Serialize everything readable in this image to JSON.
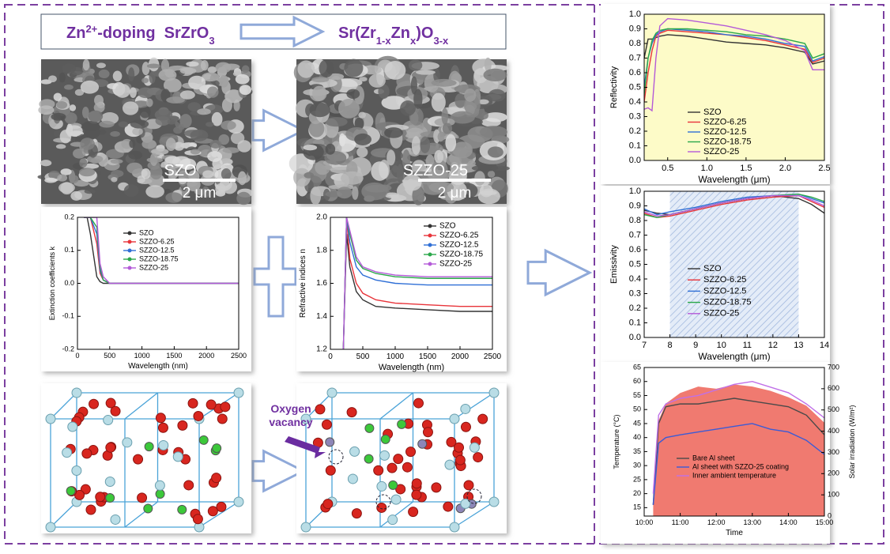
{
  "header": {
    "left": [
      "Zn",
      "2+",
      "-doping  SrZrO",
      "3"
    ],
    "right": [
      "Sr(Zr",
      "1-x",
      "Zn",
      "x",
      ")O",
      "3-x"
    ]
  },
  "sem": {
    "left_label": "SZO",
    "left_scale": "2 μm",
    "right_label": "SZZO-25",
    "right_scale": "2 μm"
  },
  "structure": {
    "annotation": "Oxygen vacancy"
  },
  "chart_data": [
    {
      "type": "line",
      "xlabel": "Wavelength (nm)",
      "ylabel": "Extinction coefficients k",
      "xlim": [
        0,
        2500
      ],
      "xticks": [
        0,
        500,
        1000,
        1500,
        2000,
        2500
      ],
      "ylim": [
        -0.2,
        0.2
      ],
      "yticks": [
        -0.2,
        -0.1,
        {
          "value": 0,
          "label": "0.0"
        },
        0.1,
        0.2
      ],
      "x": [
        100,
        150,
        200,
        300,
        350,
        400,
        500,
        1000,
        1500,
        2000,
        2500
      ],
      "series": [
        {
          "name": "SZO",
          "color": "#333333",
          "values": [
            0.2,
            0.2,
            0.15,
            0.02,
            0.005,
            0,
            0,
            0,
            0,
            0,
            0
          ]
        },
        {
          "name": "SZZO-6.25",
          "color": "#e8343a",
          "values": [
            0.2,
            0.2,
            0.2,
            0.12,
            0.03,
            0.01,
            0,
            0,
            0,
            0,
            0
          ]
        },
        {
          "name": "SZZO-12.5",
          "color": "#2f6fd6",
          "values": [
            0.2,
            0.2,
            0.2,
            0.15,
            0.04,
            0.01,
            0,
            0,
            0,
            0,
            0
          ]
        },
        {
          "name": "SZZO-18.75",
          "color": "#2aa84a",
          "values": [
            0.2,
            0.2,
            0.2,
            0.17,
            0.05,
            0.01,
            0,
            0,
            0,
            0,
            0
          ]
        },
        {
          "name": "SZZO-25",
          "color": "#b45ad8",
          "values": [
            0.2,
            0.2,
            0.2,
            0.2,
            0.06,
            0.02,
            0,
            0,
            0,
            0,
            0
          ]
        }
      ]
    },
    {
      "type": "line",
      "xlabel": "Wavelength (nm)",
      "ylabel": "Refractive indices n",
      "xlim": [
        0,
        2500
      ],
      "xticks": [
        0,
        500,
        1000,
        1500,
        2000,
        2500
      ],
      "ylim": [
        1.2,
        2.0
      ],
      "yticks": [
        1.2,
        1.4,
        1.6,
        1.8,
        {
          "value": 2,
          "label": "2.0"
        }
      ],
      "x": [
        200,
        250,
        300,
        400,
        500,
        700,
        1000,
        1500,
        2000,
        2500
      ],
      "series": [
        {
          "name": "SZO",
          "color": "#333333",
          "values": [
            1.2,
            1.9,
            1.7,
            1.55,
            1.5,
            1.46,
            1.45,
            1.44,
            1.43,
            1.43
          ]
        },
        {
          "name": "SZZO-6.25",
          "color": "#e8343a",
          "values": [
            1.2,
            2.0,
            1.75,
            1.6,
            1.54,
            1.5,
            1.48,
            1.47,
            1.46,
            1.46
          ]
        },
        {
          "name": "SZZO-12.5",
          "color": "#2f6fd6",
          "values": [
            1.2,
            2.0,
            1.85,
            1.7,
            1.65,
            1.62,
            1.6,
            1.59,
            1.59,
            1.59
          ]
        },
        {
          "name": "SZZO-18.75",
          "color": "#2aa84a",
          "values": [
            1.2,
            2.0,
            1.9,
            1.74,
            1.69,
            1.66,
            1.64,
            1.63,
            1.63,
            1.63
          ]
        },
        {
          "name": "SZZO-25",
          "color": "#b45ad8",
          "values": [
            1.2,
            2.0,
            1.92,
            1.76,
            1.7,
            1.67,
            1.65,
            1.64,
            1.64,
            1.64
          ]
        }
      ]
    },
    {
      "type": "line",
      "xlabel": "Wavelength (μm)",
      "ylabel": "Reflectivity",
      "background": "#fdfbc8",
      "xlim": [
        0.2,
        2.5
      ],
      "xticks": [
        0.5,
        {
          "value": 1,
          "label": "1.0"
        },
        1.5,
        {
          "value": 2,
          "label": "2.0"
        },
        2.5
      ],
      "ylim": [
        0,
        1
      ],
      "yticks": [
        {
          "value": 0,
          "label": "0.0"
        },
        0.1,
        0.2,
        0.3,
        0.4,
        0.5,
        0.6,
        0.7,
        0.8,
        0.9,
        {
          "value": 1,
          "label": "1.0"
        }
      ],
      "x": [
        0.2,
        0.25,
        0.3,
        0.35,
        0.4,
        0.5,
        0.75,
        1.0,
        1.25,
        1.5,
        1.75,
        2.0,
        2.25,
        2.35,
        2.5
      ],
      "series": [
        {
          "name": "SZO",
          "color": "#333333",
          "values": [
            0.7,
            0.83,
            0.83,
            0.84,
            0.85,
            0.86,
            0.85,
            0.83,
            0.81,
            0.8,
            0.79,
            0.77,
            0.74,
            0.66,
            0.68
          ]
        },
        {
          "name": "SZZO-6.25",
          "color": "#e8343a",
          "values": [
            0.4,
            0.6,
            0.75,
            0.85,
            0.87,
            0.89,
            0.88,
            0.87,
            0.86,
            0.84,
            0.82,
            0.79,
            0.76,
            0.67,
            0.7
          ]
        },
        {
          "name": "SZZO-12.5",
          "color": "#2f6fd6",
          "values": [
            0.5,
            0.7,
            0.8,
            0.86,
            0.88,
            0.9,
            0.89,
            0.88,
            0.86,
            0.85,
            0.83,
            0.8,
            0.78,
            0.68,
            0.71
          ]
        },
        {
          "name": "SZZO-18.75",
          "color": "#2aa84a",
          "values": [
            0.45,
            0.7,
            0.82,
            0.87,
            0.89,
            0.9,
            0.9,
            0.89,
            0.88,
            0.86,
            0.85,
            0.83,
            0.8,
            0.7,
            0.73
          ]
        },
        {
          "name": "SZZO-25",
          "color": "#b45ad8",
          "values": [
            0.35,
            0.36,
            0.34,
            0.7,
            0.92,
            0.97,
            0.96,
            0.94,
            0.92,
            0.89,
            0.86,
            0.82,
            0.75,
            0.62,
            0.62
          ]
        }
      ]
    },
    {
      "type": "line",
      "xlabel": "Wavelength (μm)",
      "ylabel": "Emissivity",
      "shaded_range": [
        8,
        13
      ],
      "xlim": [
        7,
        14
      ],
      "xticks": [
        7,
        8,
        9,
        10,
        11,
        12,
        13,
        14
      ],
      "ylim": [
        0,
        1
      ],
      "yticks": [
        {
          "value": 0,
          "label": "0.0"
        },
        0.1,
        0.2,
        0.3,
        0.4,
        0.5,
        0.6,
        0.7,
        0.8,
        0.9,
        {
          "value": 1,
          "label": "1.0"
        }
      ],
      "x": [
        7,
        7.5,
        8,
        9,
        10,
        11,
        12,
        13,
        13.5,
        14
      ],
      "series": [
        {
          "name": "SZO",
          "color": "#333333",
          "values": [
            0.87,
            0.85,
            0.84,
            0.88,
            0.92,
            0.95,
            0.97,
            0.95,
            0.91,
            0.85
          ]
        },
        {
          "name": "SZZO-6.25",
          "color": "#e8343a",
          "values": [
            0.85,
            0.82,
            0.83,
            0.87,
            0.91,
            0.94,
            0.96,
            0.97,
            0.93,
            0.89
          ]
        },
        {
          "name": "SZZO-12.5",
          "color": "#2f6fd6",
          "values": [
            0.88,
            0.84,
            0.86,
            0.89,
            0.93,
            0.96,
            0.97,
            0.98,
            0.95,
            0.92
          ]
        },
        {
          "name": "SZZO-18.75",
          "color": "#2aa84a",
          "values": [
            0.84,
            0.82,
            0.84,
            0.88,
            0.92,
            0.95,
            0.97,
            0.98,
            0.96,
            0.93
          ]
        },
        {
          "name": "SZZO-25",
          "color": "#b45ad8",
          "values": [
            0.86,
            0.83,
            0.84,
            0.88,
            0.92,
            0.95,
            0.97,
            0.97,
            0.94,
            0.9
          ]
        }
      ]
    },
    {
      "type": "line",
      "xlabel": "Time",
      "ylabel": "Temperature (°C)",
      "y2label": "Solar irradiation (W/m²)",
      "xlim": [
        10,
        15
      ],
      "xticks": [
        {
          "value": 10,
          "label": "10:00"
        },
        {
          "value": 11,
          "label": "11:00"
        },
        {
          "value": 12,
          "label": "12:00"
        },
        {
          "value": 13,
          "label": "13:00"
        },
        {
          "value": 14,
          "label": "14:00"
        },
        {
          "value": 15,
          "label": "15:00"
        }
      ],
      "ylim": [
        12,
        65
      ],
      "yticks": [
        15,
        20,
        25,
        30,
        35,
        40,
        45,
        50,
        55,
        60,
        65
      ],
      "y2lim": [
        0,
        700
      ],
      "y2ticks": [
        0,
        100,
        200,
        300,
        400,
        500,
        600,
        700
      ],
      "x": [
        10.25,
        10.4,
        10.6,
        11,
        11.5,
        12,
        12.5,
        13,
        13.5,
        14,
        14.5,
        15
      ],
      "area": {
        "color": "#f07a70",
        "axis": "y2",
        "values": [
          100,
          450,
          530,
          580,
          610,
          600,
          620,
          610,
          590,
          560,
          520,
          440
        ]
      },
      "series": [
        {
          "name": "Bare Al sheet",
          "color": "#4a4a4a",
          "values": [
            16,
            45,
            51,
            52,
            52,
            53,
            54,
            53,
            52,
            51,
            48,
            41
          ]
        },
        {
          "name": "Al sheet with SZZO-25 coating",
          "color": "#3b5bd6",
          "values": [
            16,
            38,
            40,
            41,
            42,
            43,
            44,
            45,
            43,
            42,
            39,
            34
          ]
        },
        {
          "name": "Inner ambient temperature",
          "color": "#c070e8",
          "values": [
            20,
            48,
            52,
            54,
            55,
            57,
            59,
            60,
            58,
            56,
            52,
            47
          ]
        }
      ]
    }
  ]
}
